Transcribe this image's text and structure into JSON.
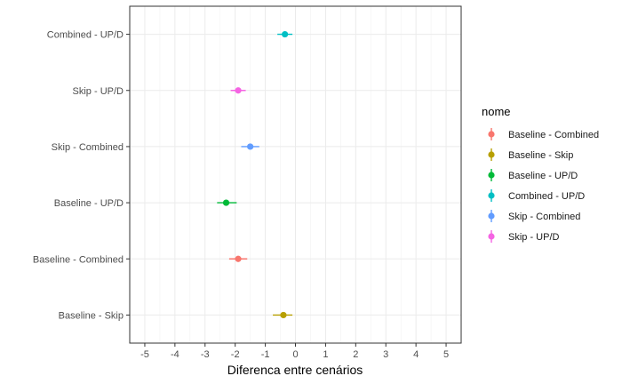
{
  "chart_data": {
    "type": "scatter",
    "subtype": "pointrange",
    "title": "",
    "xlabel": "Diferenca entre cenários",
    "ylabel": "",
    "xlim": [
      -5.5,
      5.5
    ],
    "x_ticks": [
      -5,
      -4,
      -3,
      -2,
      -1,
      0,
      1,
      2,
      3,
      4,
      5
    ],
    "categories": [
      "Baseline - Skip",
      "Baseline - Combined",
      "Baseline - UP/D",
      "Skip - Combined",
      "Skip - UP/D",
      "Combined - UP/D"
    ],
    "grid": true,
    "legend": {
      "title": "nome",
      "position": "right",
      "entries": [
        "Baseline - Combined",
        "Baseline - Skip",
        "Baseline - UP/D",
        "Combined - UP/D",
        "Skip - Combined",
        "Skip - UP/D"
      ]
    },
    "series": [
      {
        "name": "Baseline - Combined",
        "category": "Baseline - Combined",
        "x": -1.9,
        "lower": -2.2,
        "upper": -1.6,
        "color": "#F8766D"
      },
      {
        "name": "Baseline - Skip",
        "category": "Baseline - Skip",
        "x": -0.4,
        "lower": -0.75,
        "upper": -0.1,
        "color": "#B79F00"
      },
      {
        "name": "Baseline - UP/D",
        "category": "Baseline - UP/D",
        "x": -2.3,
        "lower": -2.6,
        "upper": -1.95,
        "color": "#00BA38"
      },
      {
        "name": "Combined - UP/D",
        "category": "Combined - UP/D",
        "x": -0.35,
        "lower": -0.6,
        "upper": -0.1,
        "color": "#00BFC4"
      },
      {
        "name": "Skip - Combined",
        "category": "Skip - Combined",
        "x": -1.5,
        "lower": -1.8,
        "upper": -1.2,
        "color": "#619CFF"
      },
      {
        "name": "Skip - UP/D",
        "category": "Skip - UP/D",
        "x": -1.9,
        "lower": -2.15,
        "upper": -1.65,
        "color": "#F564E3"
      }
    ]
  }
}
